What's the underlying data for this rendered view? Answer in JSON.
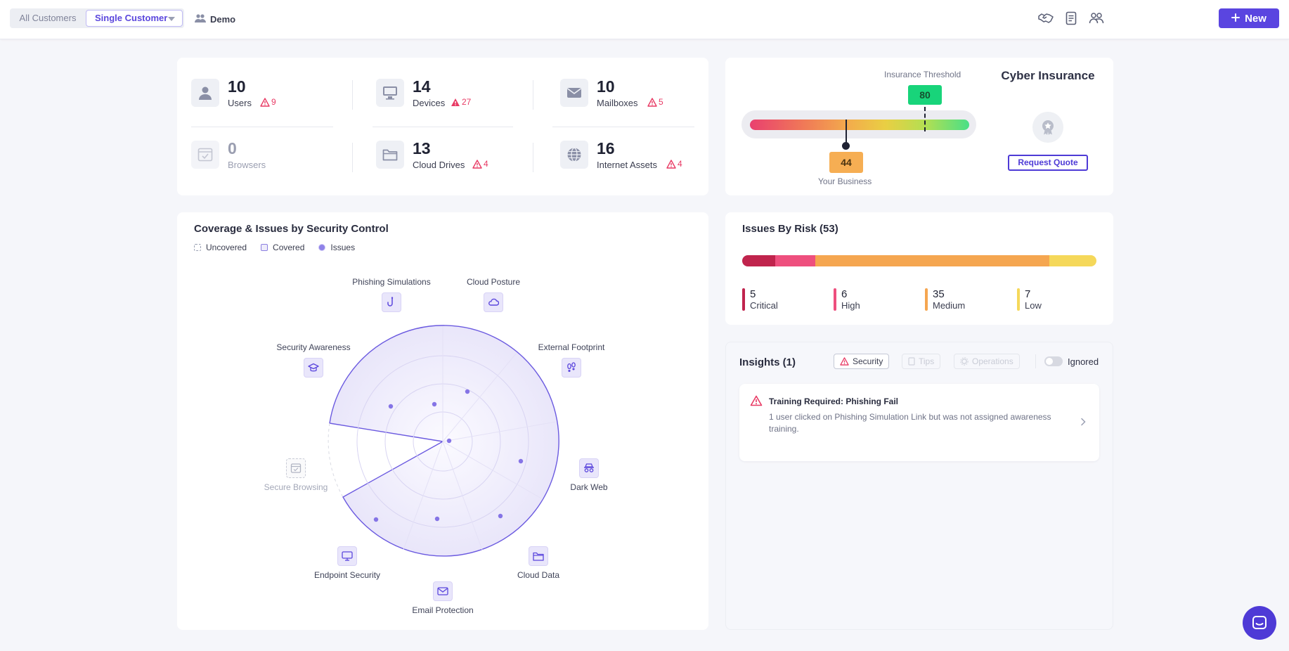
{
  "header": {
    "scope_all": "All Customers",
    "scope_single": "Single Customer",
    "customer_name": "Demo",
    "new_label": "New",
    "icons": [
      "handshake-icon",
      "document-icon",
      "team-icon"
    ]
  },
  "stats": [
    {
      "value": "10",
      "label": "Users",
      "issues": "9",
      "icon": "user-icon"
    },
    {
      "value": "14",
      "label": "Devices",
      "issues": "27",
      "icon": "monitor-icon"
    },
    {
      "value": "10",
      "label": "Mailboxes",
      "issues": "5",
      "icon": "mail-icon"
    },
    {
      "value": "0",
      "label": "Browsers",
      "issues": "",
      "icon": "browser-icon"
    },
    {
      "value": "13",
      "label": "Cloud Drives",
      "issues": "4",
      "icon": "folder-icon"
    },
    {
      "value": "16",
      "label": "Internet Assets",
      "issues": "4",
      "icon": "globe-icon"
    }
  ],
  "insurance": {
    "threshold_label": "Insurance Threshold",
    "threshold_value": "80",
    "business_label": "Your Business",
    "business_value": "44",
    "title": "Cyber Insurance",
    "quote_label": "Request Quote",
    "colors": {
      "threshold": "#18d47a",
      "business": "#f6ae53"
    }
  },
  "coverage": {
    "title": "Coverage & Issues by Security Control",
    "legend": {
      "uncovered": "Uncovered",
      "covered": "Covered",
      "issues": "Issues"
    },
    "controls": [
      {
        "name": "Phishing Simulations",
        "icon": "hook-icon",
        "covered": true
      },
      {
        "name": "Cloud Posture",
        "icon": "cloud-icon",
        "covered": true
      },
      {
        "name": "External Footprint",
        "icon": "footprint-icon",
        "covered": true
      },
      {
        "name": "Dark Web",
        "icon": "spy-icon",
        "covered": true
      },
      {
        "name": "Cloud Data",
        "icon": "folder-icon",
        "covered": true
      },
      {
        "name": "Email Protection",
        "icon": "mail-icon",
        "covered": true
      },
      {
        "name": "Endpoint Security",
        "icon": "monitor-icon",
        "covered": true
      },
      {
        "name": "Secure Browsing",
        "icon": "browser-icon",
        "covered": false
      },
      {
        "name": "Security Awareness",
        "icon": "graduation-cap-icon",
        "covered": true
      }
    ]
  },
  "risk": {
    "title": "Issues By Risk (53)",
    "levels": [
      {
        "count": "5",
        "label": "Critical",
        "color": "#c0244d"
      },
      {
        "count": "6",
        "label": "High",
        "color": "#ee4f7e"
      },
      {
        "count": "35",
        "label": "Medium",
        "color": "#f5a650"
      },
      {
        "count": "7",
        "label": "Low",
        "color": "#f5d85a"
      }
    ]
  },
  "insights": {
    "title": "Insights (1)",
    "filters": {
      "security": "Security",
      "tips": "Tips",
      "operations": "Operations"
    },
    "ignored_label": "Ignored",
    "items": [
      {
        "title": "Training Required: Phishing Fail",
        "text": "1 user clicked on Phishing Simulation Link but was not assigned awareness training."
      }
    ]
  }
}
